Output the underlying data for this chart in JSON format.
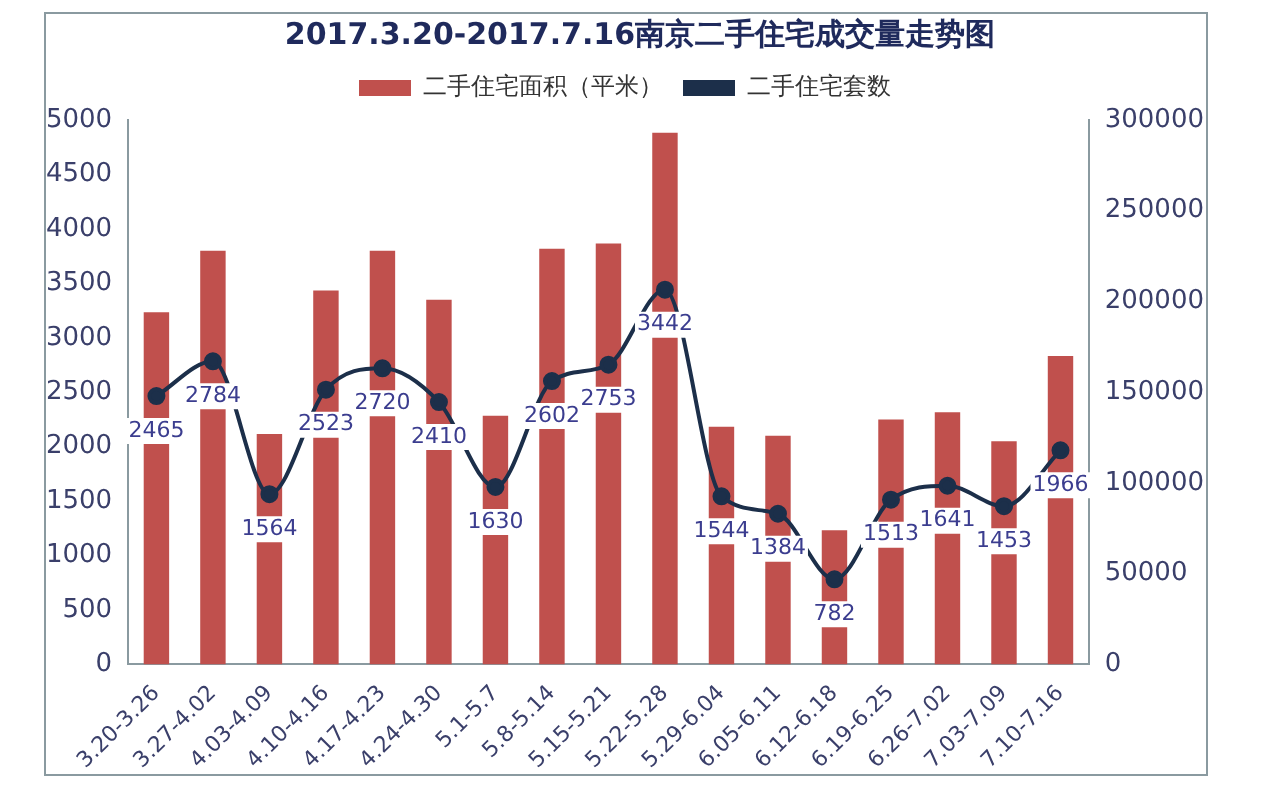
{
  "chart_data": {
    "type": "bar",
    "title": "2017.3.20-2017.7.16南京二手住宅成交量走势图",
    "categories": [
      "3.20-3.26",
      "3.27-4.02",
      "4.03-4.09",
      "4.10-4.16",
      "4.17-4.23",
      "4.24-4.30",
      "5.1-5.7",
      "5.8-5.14",
      "5.15-5.21",
      "5.22-5.28",
      "5.29-6.04",
      "6.05-6.11",
      "6.12-6.18",
      "6.19-6.25",
      "6.26-7.02",
      "7.03-7.09",
      "7.10-7.16"
    ],
    "series": [
      {
        "name": "二手住宅面积（平米）",
        "axis": "y2",
        "color": "#c0504d",
        "values": [
          194000,
          228000,
          127000,
          206000,
          228000,
          201000,
          137000,
          229000,
          232000,
          293000,
          131000,
          126000,
          74000,
          135000,
          139000,
          123000,
          170000
        ]
      },
      {
        "name": "二手住宅套数",
        "type": "line",
        "axis": "y",
        "color": "#1c2f4a",
        "marker": "circle",
        "values": [
          2465,
          2784,
          1564,
          2523,
          2720,
          2410,
          1630,
          2602,
          2753,
          3442,
          1544,
          1384,
          782,
          1513,
          1641,
          1453,
          1966
        ],
        "value_labels": [
          "2465",
          "2784",
          "1564",
          "2523",
          "2720",
          "2410",
          "1630",
          "2602",
          "2753",
          "3442",
          "1544",
          "1384",
          "782",
          "1513",
          "1641",
          "1453",
          "1966"
        ]
      }
    ],
    "ylim": [
      0,
      5000
    ],
    "yticks": [
      0,
      500,
      1000,
      1500,
      2000,
      2500,
      3000,
      3500,
      4000,
      4500,
      5000
    ],
    "y2lim": [
      0,
      300000
    ],
    "y2ticks": [
      0,
      50000,
      100000,
      150000,
      200000,
      250000,
      300000
    ],
    "legend": "top",
    "grid": false
  }
}
